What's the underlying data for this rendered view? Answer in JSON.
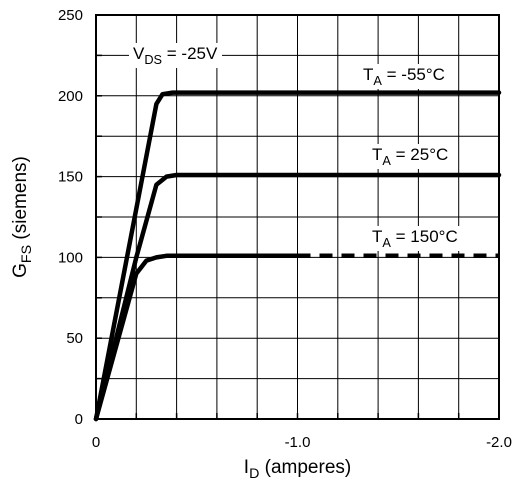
{
  "chart_data": {
    "type": "line",
    "xlabel": {
      "main": "I",
      "sub": "D",
      "rest": " (amperes)"
    },
    "ylabel": {
      "main": "G",
      "sub": "FS",
      "rest": " (siemens)"
    },
    "xlim": [
      0,
      -2.0
    ],
    "ylim": [
      0,
      250
    ],
    "x_ticks": [
      0,
      -0.2,
      -0.4,
      -0.6,
      -0.8,
      -1.0,
      -1.2,
      -1.4,
      -1.6,
      -1.8,
      -2.0
    ],
    "x_tick_labels": [
      {
        "value": 0,
        "label": "0"
      },
      {
        "value": -1.0,
        "label": "-1.0"
      },
      {
        "value": -2.0,
        "label": "-2.0"
      }
    ],
    "y_ticks": [
      0,
      25,
      50,
      75,
      100,
      125,
      150,
      175,
      200,
      225,
      250
    ],
    "y_tick_labels": [
      {
        "value": 0,
        "label": "0"
      },
      {
        "value": 50,
        "label": "50"
      },
      {
        "value": 100,
        "label": "100"
      },
      {
        "value": 150,
        "label": "150"
      },
      {
        "value": 200,
        "label": "200"
      },
      {
        "value": 250,
        "label": "250"
      }
    ],
    "grid": true,
    "condition": {
      "main": "V",
      "sub": "DS",
      "rest": " = -25V"
    },
    "series": [
      {
        "name": {
          "main": "T",
          "sub": "A",
          "rest": " = -55°C"
        },
        "points": [
          [
            0,
            0
          ],
          [
            -0.3,
            195
          ],
          [
            -0.33,
            201
          ],
          [
            -0.38,
            202
          ],
          [
            -2.0,
            202
          ]
        ]
      },
      {
        "name": {
          "main": "T",
          "sub": "A",
          "rest": " = 25°C"
        },
        "points": [
          [
            0,
            0
          ],
          [
            -0.2,
            100
          ],
          [
            -0.3,
            145
          ],
          [
            -0.35,
            150
          ],
          [
            -0.4,
            151
          ],
          [
            -2.0,
            151
          ]
        ]
      },
      {
        "name": {
          "main": "T",
          "sub": "A",
          "rest": " = 150°C"
        },
        "points": [
          [
            0,
            0
          ],
          [
            -0.2,
            90
          ],
          [
            -0.25,
            98
          ],
          [
            -0.3,
            100
          ],
          [
            -0.35,
            101
          ],
          [
            -1.0,
            101
          ]
        ],
        "dashed_extension": [
          [
            -1.0,
            101
          ],
          [
            -2.0,
            101
          ]
        ]
      }
    ]
  }
}
